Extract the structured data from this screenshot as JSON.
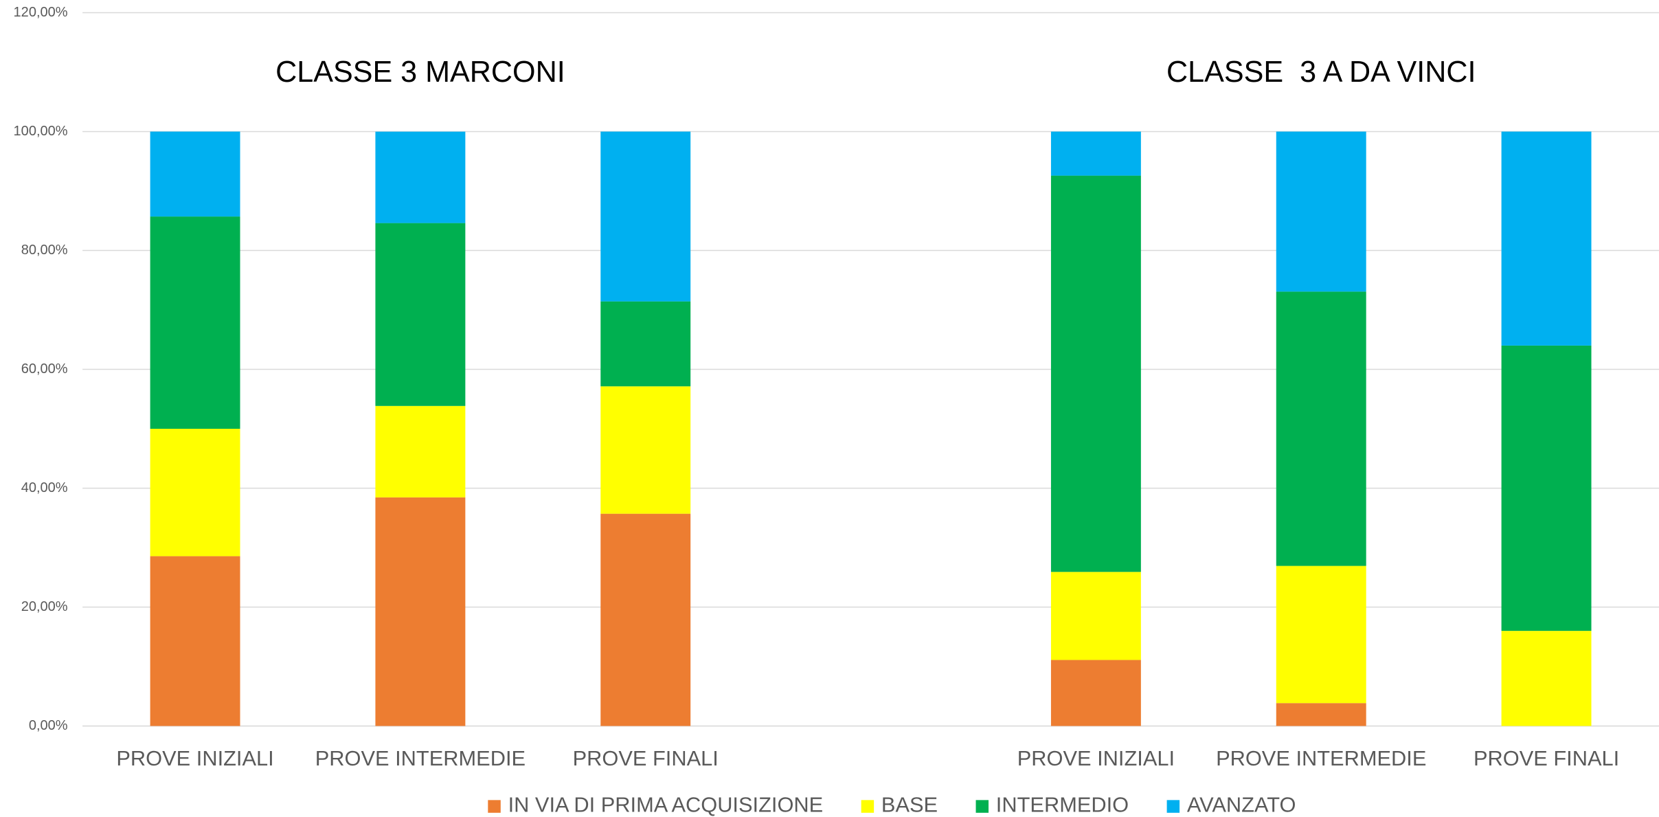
{
  "chart_data": {
    "type": "stacked_bar",
    "annotations": [
      {
        "text": "CLASSE 3 MARCONI"
      },
      {
        "text": "CLASSE  3 A DA VINCI"
      }
    ],
    "categories": [
      "PROVE INIZIALI",
      "PROVE INTERMEDIE",
      "PROVE FINALI",
      null,
      "PROVE INIZIALI",
      "PROVE INTERMEDIE",
      "PROVE FINALI"
    ],
    "series": [
      {
        "name": "IN VIA DI PRIMA ACQUISIZIONE",
        "color": "#ED7D31",
        "values": [
          28.57,
          38.46,
          35.71,
          null,
          11.11,
          3.85,
          0
        ]
      },
      {
        "name": "BASE",
        "color": "#FFFF00",
        "values": [
          21.43,
          15.38,
          21.43,
          null,
          14.81,
          23.08,
          16
        ]
      },
      {
        "name": "INTERMEDIO",
        "color": "#00B050",
        "values": [
          35.71,
          30.77,
          14.29,
          null,
          66.67,
          46.15,
          48
        ]
      },
      {
        "name": "AVANZATO",
        "color": "#00B0F0",
        "values": [
          14.29,
          15.38,
          28.57,
          null,
          7.41,
          26.92,
          36
        ]
      }
    ],
    "ylim": [
      0,
      120
    ],
    "yticks": [
      {
        "value": 0,
        "label": "0,00%"
      },
      {
        "value": 20,
        "label": "20,00%"
      },
      {
        "value": 40,
        "label": "40,00%"
      },
      {
        "value": 60,
        "label": "60,00%"
      },
      {
        "value": 80,
        "label": "80,00%"
      },
      {
        "value": 100,
        "label": "100,00%"
      },
      {
        "value": 120,
        "label": "120,00%"
      }
    ],
    "grid": true,
    "legend": "bottom"
  }
}
